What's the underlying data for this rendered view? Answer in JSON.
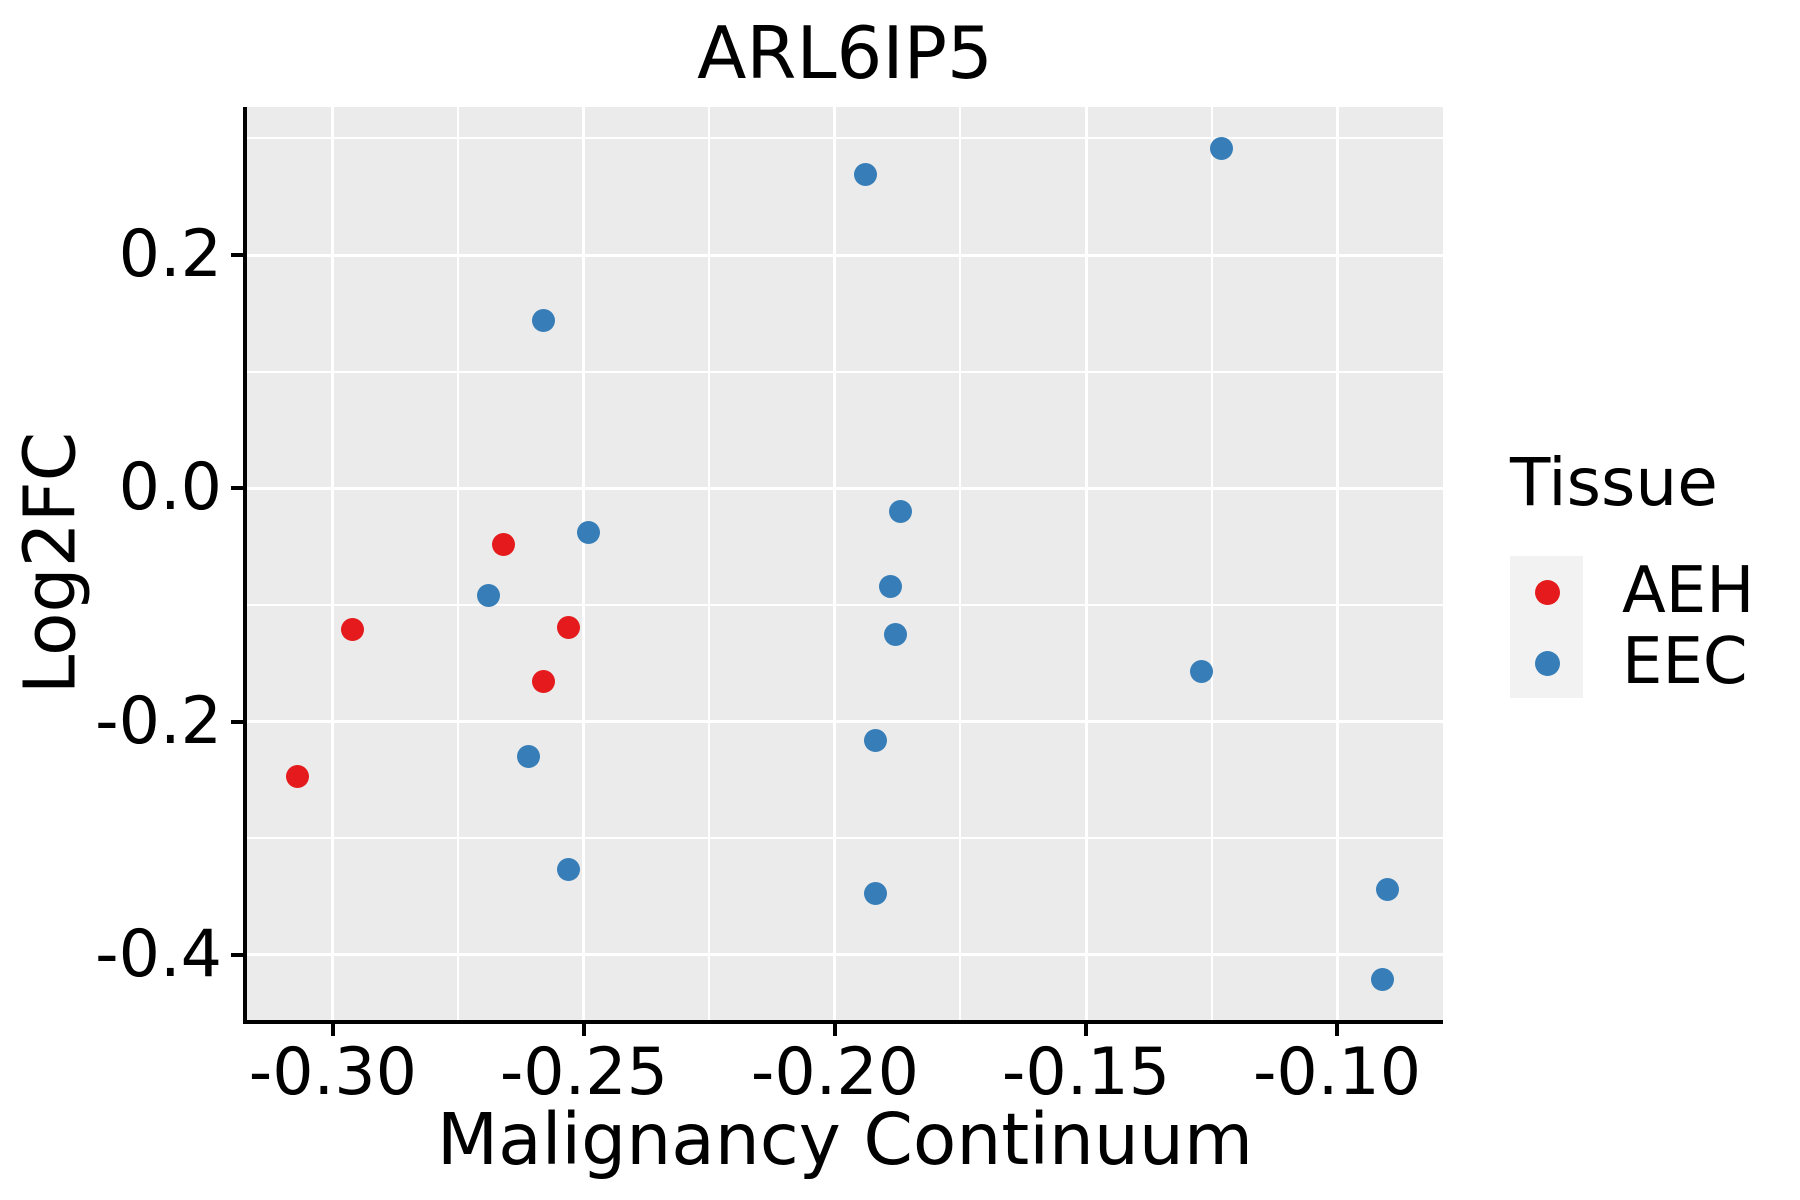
{
  "title": "ARL6IP5",
  "axes": {
    "x_title": "Malignancy Continuum",
    "y_title": "Log2FC"
  },
  "legend": {
    "title": "Tissue",
    "items": [
      {
        "label": "AEH",
        "color": "#E41A1C"
      },
      {
        "label": "EEC",
        "color": "#377EB8"
      }
    ]
  },
  "colors": {
    "panel_background": "#EBEBEB",
    "gridline": "#FFFFFF",
    "legend_key_background": "#F2F2F2",
    "axis_line": "#000000",
    "text": "#000000",
    "aeh": "#E41A1C",
    "eec": "#377EB8"
  },
  "chart_data": {
    "type": "scatter",
    "title": "ARL6IP5",
    "xlabel": "Malignancy Continuum",
    "ylabel": "Log2FC",
    "grid": true,
    "legend_position": "right",
    "x_domain": [
      -0.3171,
      -0.0789
    ],
    "y_domain": [
      -0.4558,
      0.3269
    ],
    "x_ticks": [
      {
        "value": -0.3,
        "label": "-0.30"
      },
      {
        "value": -0.25,
        "label": "-0.25"
      },
      {
        "value": -0.2,
        "label": "-0.20"
      },
      {
        "value": -0.15,
        "label": "-0.15"
      },
      {
        "value": -0.1,
        "label": "-0.10"
      }
    ],
    "y_ticks": [
      {
        "value": 0.2,
        "label": "0.2"
      },
      {
        "value": 0.0,
        "label": "0.0"
      },
      {
        "value": -0.2,
        "label": "-0.2"
      },
      {
        "value": -0.4,
        "label": "-0.4"
      }
    ],
    "x_minor_gridlines": [
      -0.275,
      -0.225,
      -0.175,
      -0.125
    ],
    "y_minor_gridlines": [
      0.3,
      0.1,
      -0.1,
      -0.3
    ],
    "series": [
      {
        "name": "AEH",
        "color": "#E41A1C",
        "points": [
          [
            -0.307,
            -0.247
          ],
          [
            -0.296,
            -0.121
          ],
          [
            -0.266,
            -0.048
          ],
          [
            -0.258,
            -0.166
          ],
          [
            -0.253,
            -0.119
          ]
        ]
      },
      {
        "name": "EEC",
        "color": "#377EB8",
        "points": [
          [
            -0.269,
            -0.092
          ],
          [
            -0.261,
            -0.23
          ],
          [
            -0.258,
            0.144
          ],
          [
            -0.253,
            -0.327
          ],
          [
            -0.249,
            -0.038
          ],
          [
            -0.194,
            0.269
          ],
          [
            -0.192,
            -0.216
          ],
          [
            -0.192,
            -0.347
          ],
          [
            -0.189,
            -0.084
          ],
          [
            -0.188,
            -0.125
          ],
          [
            -0.187,
            -0.02
          ],
          [
            -0.127,
            -0.157
          ],
          [
            -0.123,
            0.291
          ],
          [
            -0.091,
            -0.421
          ],
          [
            -0.09,
            -0.344
          ]
        ]
      }
    ]
  }
}
